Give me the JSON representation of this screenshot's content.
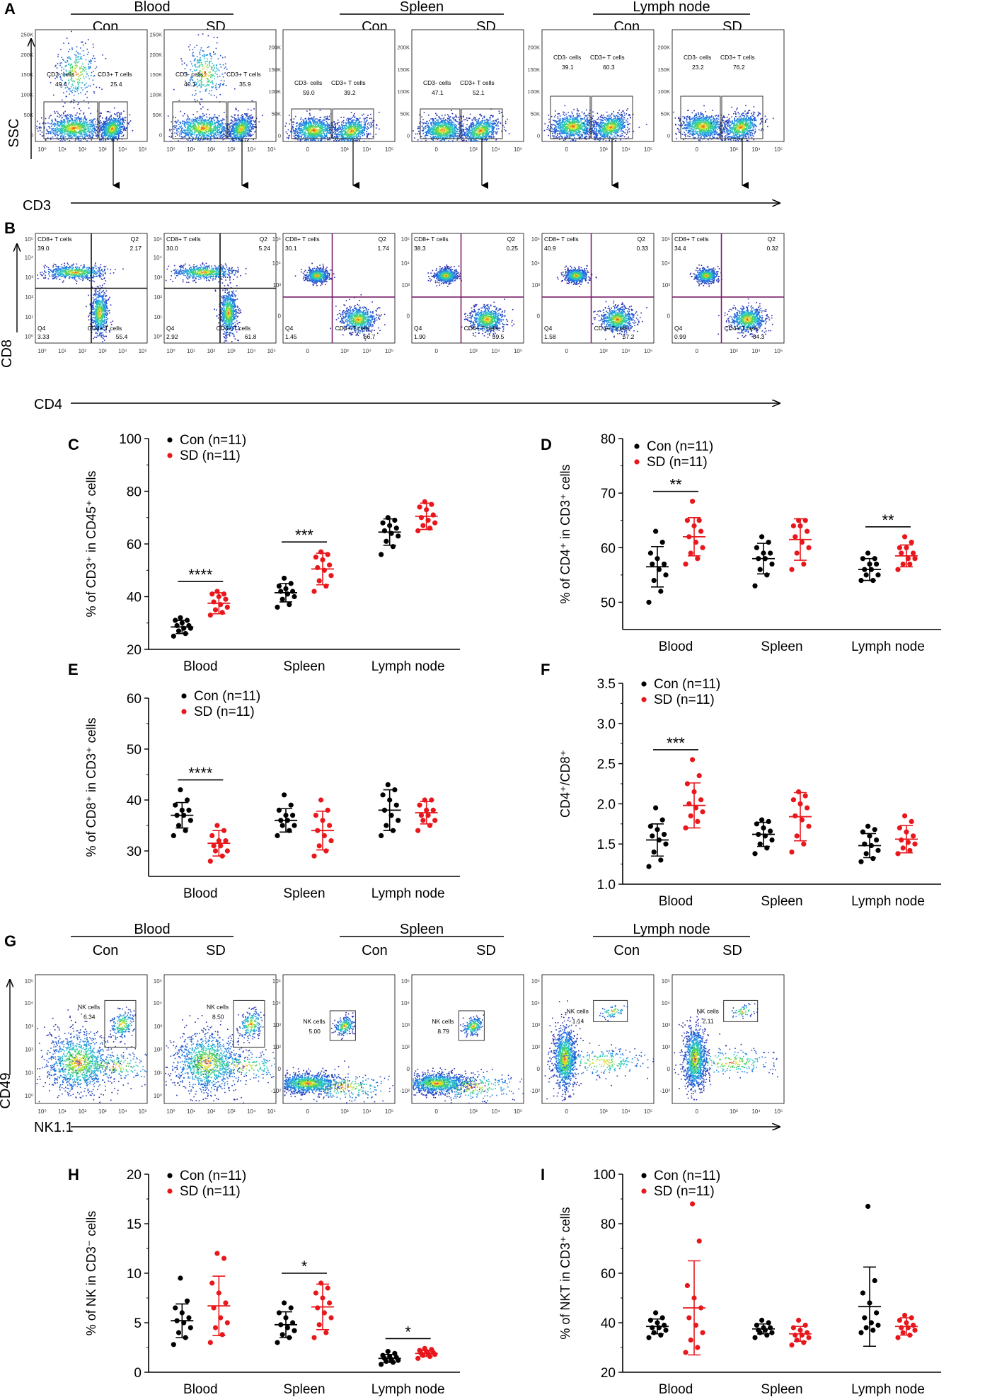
{
  "flow": {
    "groups": [
      "Blood",
      "Spleen",
      "Lymph node"
    ],
    "conditions": [
      "Con",
      "SD"
    ],
    "panelA": {
      "label": "A",
      "x_axis": "CD3",
      "y_axis": "SSC",
      "y_ticks_log": [
        "250K",
        "200K",
        "150K",
        "100K",
        "50K",
        "0"
      ],
      "y_ticks_lin": [
        "200K",
        "150K",
        "100K",
        "50K",
        "0"
      ],
      "gate_left": "CD3- cells",
      "gate_right": "CD3+ T cells",
      "plots": [
        {
          "left_value": "49.4",
          "right_value": "25.4"
        },
        {
          "left_value": "40.1",
          "right_value": "35.9"
        },
        {
          "left_value": "59.0",
          "right_value": "39.2"
        },
        {
          "left_value": "47.1",
          "right_value": "52.1"
        },
        {
          "left_value": "39.1",
          "right_value": "60.3"
        },
        {
          "left_value": "23.2",
          "right_value": "76.2"
        }
      ]
    },
    "panelB": {
      "label": "B",
      "x_axis": "CD4",
      "y_axis": "CD8",
      "q1": "CD8+ T cells",
      "q2": "Q2",
      "q3": "CD4+ T cells",
      "q4": "Q4",
      "plots": [
        {
          "q1": "39.0",
          "q2": "2.17",
          "q3": "55.4",
          "q4": "3.33"
        },
        {
          "q1": "30.0",
          "q2": "5.24",
          "q3": "61.8",
          "q4": "2.92"
        },
        {
          "q1": "30.1",
          "q2": "1.74",
          "q3": "66.7",
          "q4": "1.45"
        },
        {
          "q1": "38.3",
          "q2": "0.25",
          "q3": "59.5",
          "q4": "1.90"
        },
        {
          "q1": "40.9",
          "q2": "0.33",
          "q3": "57.2",
          "q4": "1.58"
        },
        {
          "q1": "34.4",
          "q2": "0.32",
          "q3": "64.3",
          "q4": "0.99"
        }
      ]
    },
    "panelG": {
      "label": "G",
      "x_axis": "NK1.1",
      "y_axis": "CD49",
      "gate": "NK cells",
      "values": [
        "6.34",
        "8.50",
        "5.00",
        "8.79",
        "1.14",
        "2.11"
      ]
    },
    "log_ticks": [
      "10⁰",
      "10¹",
      "10²",
      "10³",
      "10⁴",
      "10⁵"
    ],
    "biex_ticks": [
      "0",
      "10³",
      "10⁴",
      "10⁵"
    ],
    "biex_neg": [
      "-10²",
      "0"
    ]
  },
  "chart_data": [
    {
      "type": "scatter",
      "panel": "C",
      "ylabel": "% of CD3⁺ in CD45⁺ cells",
      "categories": [
        "Blood",
        "Spleen",
        "Lymph node"
      ],
      "ylim": [
        20,
        100
      ],
      "yticks": [
        "20",
        "40",
        "60",
        "80",
        "100"
      ],
      "series": [
        {
          "name": "Con (n=11)",
          "color": "#000000",
          "means": [
            28.5,
            41.5,
            64.5
          ],
          "sd": [
            2.5,
            3.5,
            5.0
          ],
          "points": [
            [
              25,
              26,
              27,
              28,
              28,
              29,
              29,
              30,
              31,
              31,
              32
            ],
            [
              36,
              37,
              39,
              40,
              41,
              42,
              42,
              43,
              44,
              45,
              47
            ],
            [
              56,
              59,
              61,
              63,
              64,
              65,
              66,
              67,
              68,
              69,
              70
            ]
          ]
        },
        {
          "name": "SD (n=11)",
          "color": "#e8171c",
          "means": [
            37.5,
            50.5,
            70.5
          ],
          "sd": [
            4.0,
            6.0,
            5.0
          ],
          "points": [
            [
              33,
              34,
              35,
              36,
              37,
              38,
              39,
              40,
              41,
              41,
              42
            ],
            [
              42,
              44,
              46,
              48,
              50,
              51,
              52,
              54,
              55,
              56,
              57
            ],
            [
              65,
              66,
              67,
              68,
              69,
              70,
              71,
              73,
              74,
              75,
              76
            ]
          ]
        }
      ],
      "significance": [
        {
          "group": "Blood",
          "label": "****"
        },
        {
          "group": "Spleen",
          "label": "***"
        }
      ]
    },
    {
      "type": "scatter",
      "panel": "D",
      "ylabel": "% of CD4⁺ in CD3⁺ cells",
      "categories": [
        "Blood",
        "Spleen",
        "Lymph node"
      ],
      "ylim": [
        45,
        80
      ],
      "yticks": [
        "50",
        "60",
        "70",
        "80"
      ],
      "series": [
        {
          "name": "Con (n=11)",
          "color": "#000000",
          "means": [
            56.5,
            58.0,
            56.0
          ],
          "sd": [
            3.7,
            2.8,
            2.0
          ],
          "points": [
            [
              50,
              52,
              54,
              55,
              56,
              57,
              57,
              58,
              59,
              61,
              63
            ],
            [
              53,
              55,
              56,
              57,
              58,
              58,
              59,
              59,
              60,
              61,
              62
            ],
            [
              54,
              54,
              55,
              55,
              56,
              56,
              57,
              57,
              58,
              58,
              59
            ]
          ]
        },
        {
          "name": "SD (n=11)",
          "color": "#e8171c",
          "means": [
            62.0,
            61.5,
            58.5
          ],
          "sd": [
            3.5,
            3.8,
            2.0
          ],
          "points": [
            [
              57,
              58,
              59,
              60,
              61,
              62,
              63,
              64,
              65,
              65,
              68.5
            ],
            [
              56,
              57,
              59,
              60,
              61,
              62,
              63,
              64,
              64,
              65,
              65
            ],
            [
              56,
              57,
              57,
              58,
              58,
              59,
              59,
              60,
              60,
              61,
              62
            ]
          ]
        }
      ],
      "significance": [
        {
          "group": "Blood",
          "label": "**"
        },
        {
          "group": "Lymph node",
          "label": "**"
        }
      ]
    },
    {
      "type": "scatter",
      "panel": "E",
      "ylabel": "% of CD8⁺ in CD3⁺ cells",
      "categories": [
        "Blood",
        "Spleen",
        "Lymph node"
      ],
      "ylim": [
        25,
        60
      ],
      "yticks": [
        "30",
        "40",
        "50",
        "60"
      ],
      "series": [
        {
          "name": "Con (n=11)",
          "color": "#000000",
          "means": [
            37.0,
            36.0,
            38.0
          ],
          "sd": [
            2.5,
            2.3,
            4.0
          ],
          "points": [
            [
              33,
              34,
              35,
              36,
              37,
              37,
              38,
              38,
              39,
              40,
              42
            ],
            [
              33,
              34,
              35,
              35,
              36,
              36,
              37,
              37,
              38,
              39,
              41
            ],
            [
              33,
              34,
              35,
              36,
              37,
              38,
              39,
              40,
              41,
              42,
              43
            ]
          ]
        },
        {
          "name": "SD (n=11)",
          "color": "#e8171c",
          "means": [
            31.5,
            34.0,
            37.5
          ],
          "sd": [
            2.5,
            3.8,
            2.2
          ],
          "points": [
            [
              28,
              29,
              30,
              30,
              31,
              31,
              32,
              32,
              33,
              34,
              35
            ],
            [
              29,
              30,
              31,
              32,
              33,
              34,
              35,
              36,
              37,
              38,
              40
            ],
            [
              34,
              35,
              36,
              36,
              37,
              37,
              38,
              38,
              39,
              40,
              40
            ]
          ]
        }
      ],
      "significance": [
        {
          "group": "Blood",
          "label": "****"
        }
      ]
    },
    {
      "type": "scatter",
      "panel": "F",
      "ylabel": "CD4⁺/CD8⁺",
      "categories": [
        "Blood",
        "Spleen",
        "Lymph node"
      ],
      "ylim": [
        1.0,
        3.5
      ],
      "yticks": [
        "1.0",
        "1.5",
        "2.0",
        "2.5",
        "3.0",
        "3.5"
      ],
      "series": [
        {
          "name": "Con (n=11)",
          "color": "#000000",
          "means": [
            1.55,
            1.62,
            1.48
          ],
          "sd": [
            0.2,
            0.15,
            0.15
          ],
          "points": [
            [
              1.22,
              1.3,
              1.4,
              1.5,
              1.55,
              1.6,
              1.62,
              1.68,
              1.72,
              1.8,
              1.95
            ],
            [
              1.38,
              1.45,
              1.5,
              1.55,
              1.6,
              1.62,
              1.66,
              1.7,
              1.75,
              1.78,
              1.8
            ],
            [
              1.28,
              1.32,
              1.38,
              1.42,
              1.48,
              1.5,
              1.55,
              1.6,
              1.65,
              1.68,
              1.72
            ]
          ]
        },
        {
          "name": "SD (n=11)",
          "color": "#e8171c",
          "means": [
            1.98,
            1.84,
            1.56
          ],
          "sd": [
            0.28,
            0.3,
            0.17
          ],
          "points": [
            [
              1.7,
              1.78,
              1.85,
              1.9,
              1.95,
              2.0,
              2.05,
              2.15,
              2.25,
              2.35,
              2.55
            ],
            [
              1.4,
              1.5,
              1.6,
              1.72,
              1.8,
              1.85,
              1.95,
              2.0,
              2.05,
              2.1,
              2.15
            ],
            [
              1.38,
              1.42,
              1.45,
              1.5,
              1.52,
              1.55,
              1.6,
              1.65,
              1.7,
              1.78,
              1.85
            ]
          ]
        }
      ],
      "significance": [
        {
          "group": "Blood",
          "label": "***"
        }
      ]
    },
    {
      "type": "scatter",
      "panel": "H",
      "ylabel": "% of NK in CD3⁻ cells",
      "categories": [
        "Blood",
        "Spleen",
        "Lymph node"
      ],
      "ylim": [
        0,
        20
      ],
      "yticks": [
        "0",
        "5",
        "10",
        "15",
        "20"
      ],
      "series": [
        {
          "name": "Con (n=11)",
          "color": "#000000",
          "means": [
            5.2,
            4.8,
            1.4
          ],
          "sd": [
            1.7,
            1.3,
            0.4
          ],
          "points": [
            [
              2.8,
              3.5,
              4.0,
              4.5,
              5.0,
              5.2,
              5.5,
              6.0,
              6.5,
              7.2,
              9.5
            ],
            [
              3.0,
              3.5,
              3.8,
              4.2,
              4.5,
              4.8,
              5.0,
              5.5,
              6.0,
              6.5,
              7.0
            ],
            [
              0.8,
              1.0,
              1.1,
              1.2,
              1.3,
              1.4,
              1.5,
              1.6,
              1.7,
              1.9,
              2.1
            ]
          ]
        },
        {
          "name": "SD (n=11)",
          "color": "#e8171c",
          "means": [
            6.7,
            6.6,
            1.9
          ],
          "sd": [
            3.0,
            2.3,
            0.3
          ],
          "points": [
            [
              3.0,
              3.8,
              4.5,
              5.0,
              5.5,
              6.5,
              7.0,
              8.0,
              9.0,
              11.5,
              12.0
            ],
            [
              3.5,
              4.0,
              4.8,
              5.5,
              6.0,
              6.5,
              7.0,
              7.5,
              8.0,
              8.5,
              9.0
            ],
            [
              1.4,
              1.6,
              1.7,
              1.8,
              1.9,
              1.9,
              2.0,
              2.1,
              2.2,
              2.3,
              2.4
            ]
          ]
        }
      ],
      "significance": [
        {
          "group": "Spleen",
          "label": "*"
        },
        {
          "group": "Lymph node",
          "label": "*"
        }
      ]
    },
    {
      "type": "scatter",
      "panel": "I",
      "ylabel": "% of NKT in CD3⁺ cells",
      "categories": [
        "Blood",
        "Spleen",
        "Lymph node"
      ],
      "ylim": [
        20,
        100
      ],
      "yticks": [
        "20",
        "40",
        "60",
        "80",
        "100"
      ],
      "series": [
        {
          "name": "Con (n=11)",
          "color": "#000000",
          "means": [
            38.5,
            37.5,
            46.5
          ],
          "sd": [
            3.0,
            2.0,
            16.0
          ],
          "points": [
            [
              34,
              35,
              36,
              37,
              38,
              38,
              39,
              40,
              41,
              42,
              44
            ],
            [
              34,
              35,
              36,
              36,
              37,
              37,
              38,
              38,
              39,
              40,
              41
            ],
            [
              36,
              37,
              38,
              39,
              40,
              42,
              44,
              48,
              52,
              57,
              87
            ]
          ]
        },
        {
          "name": "SD (n=11)",
          "color": "#e8171c",
          "means": [
            46.0,
            35.5,
            38.5
          ],
          "sd": [
            19.0,
            3.0,
            3.5
          ],
          "points": [
            [
              28,
              30,
              33,
              36,
              39,
              42,
              46,
              50,
              55,
              73,
              88
            ],
            [
              31,
              32,
              33,
              34,
              35,
              35,
              36,
              37,
              38,
              39,
              41
            ],
            [
              34,
              35,
              36,
              37,
              38,
              38,
              39,
              40,
              41,
              42,
              43
            ]
          ]
        }
      ],
      "significance": []
    }
  ]
}
